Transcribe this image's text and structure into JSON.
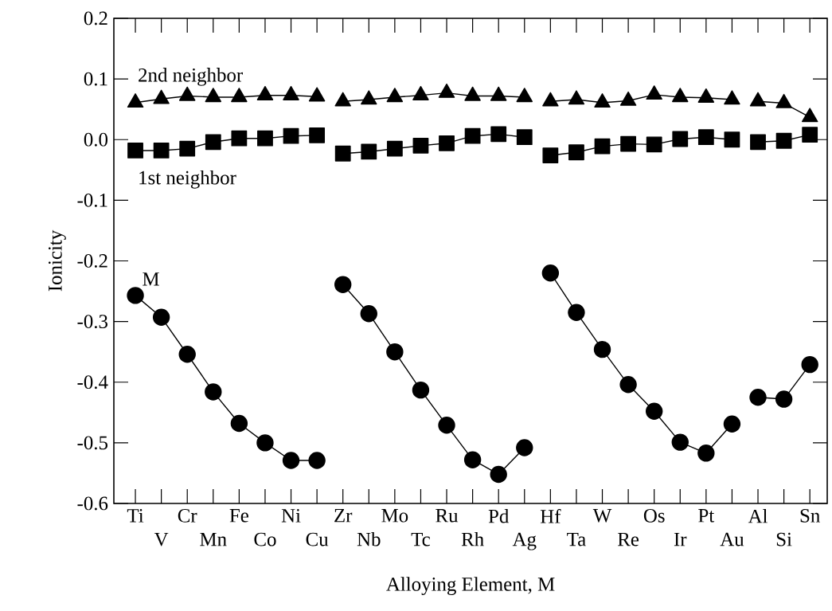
{
  "chart_data": {
    "type": "line",
    "xlabel": "Alloying Element, M",
    "ylabel": "Ionicity",
    "categories": [
      "Ti",
      "V",
      "Cr",
      "Mn",
      "Fe",
      "Co",
      "Ni",
      "Cu",
      "Zr",
      "Nb",
      "Mo",
      "Tc",
      "Ru",
      "Rh",
      "Pd",
      "Ag",
      "Hf",
      "Ta",
      "W",
      "Re",
      "Os",
      "Ir",
      "Pt",
      "Au",
      "Al",
      "Si",
      "Sn"
    ],
    "ylim": [
      -0.6,
      0.2
    ],
    "yticks": [
      {
        "value": -0.6,
        "label": "-0.6"
      },
      {
        "value": -0.5,
        "label": "-0.5"
      },
      {
        "value": -0.4,
        "label": "-0.4"
      },
      {
        "value": -0.3,
        "label": "-0.3"
      },
      {
        "value": -0.2,
        "label": "-0.2"
      },
      -0.1,
      {
        "value": 0,
        "label": "0.0"
      },
      0.1,
      0.2
    ],
    "series": [
      {
        "name": "2nd neighbor",
        "color": "#000000",
        "marker": "triangle",
        "values": [
          0.061,
          0.067,
          0.072,
          0.07,
          0.07,
          0.073,
          0.073,
          0.071,
          null,
          null,
          null,
          null,
          null,
          null,
          null,
          null,
          null,
          null,
          null,
          null,
          null,
          null,
          null,
          null,
          null,
          null,
          null
        ]
      },
      {
        "color": "#000000",
        "marker": "triangle",
        "values": [
          null,
          null,
          null,
          null,
          null,
          null,
          null,
          null,
          0.063,
          0.066,
          0.07,
          0.073,
          0.077,
          0.072,
          0.072,
          0.07,
          null,
          null,
          null,
          null,
          null,
          null,
          null,
          null,
          null,
          null,
          null
        ]
      },
      {
        "color": "#000000",
        "marker": "triangle",
        "values": [
          null,
          null,
          null,
          null,
          null,
          null,
          null,
          null,
          null,
          null,
          null,
          null,
          null,
          null,
          null,
          null,
          0.063,
          0.066,
          0.061,
          0.064,
          0.074,
          0.07,
          0.069,
          0.066,
          null,
          null,
          null
        ]
      },
      {
        "color": "#000000",
        "marker": "triangle",
        "values": [
          null,
          null,
          null,
          null,
          null,
          null,
          null,
          null,
          null,
          null,
          null,
          null,
          null,
          null,
          null,
          null,
          null,
          null,
          null,
          null,
          null,
          null,
          null,
          null,
          0.063,
          0.06,
          0.037
        ]
      },
      {
        "name": "1st neighbor",
        "color": "#000000",
        "marker": "square",
        "values": [
          -0.018,
          -0.018,
          -0.015,
          -0.004,
          0.002,
          0.002,
          0.006,
          0.007,
          null,
          null,
          null,
          null,
          null,
          null,
          null,
          null,
          null,
          null,
          null,
          null,
          null,
          null,
          null,
          null,
          null,
          null,
          null
        ]
      },
      {
        "color": "#000000",
        "marker": "square",
        "values": [
          null,
          null,
          null,
          null,
          null,
          null,
          null,
          null,
          -0.023,
          -0.02,
          -0.015,
          -0.01,
          -0.006,
          0.006,
          0.009,
          0.004,
          null,
          null,
          null,
          null,
          null,
          null,
          null,
          null,
          null,
          null,
          null
        ]
      },
      {
        "color": "#000000",
        "marker": "square",
        "values": [
          null,
          null,
          null,
          null,
          null,
          null,
          null,
          null,
          null,
          null,
          null,
          null,
          null,
          null,
          null,
          null,
          -0.026,
          -0.021,
          -0.011,
          -0.007,
          -0.008,
          0.001,
          0.004,
          0.0,
          null,
          null,
          null
        ]
      },
      {
        "color": "#000000",
        "marker": "square",
        "values": [
          null,
          null,
          null,
          null,
          null,
          null,
          null,
          null,
          null,
          null,
          null,
          null,
          null,
          null,
          null,
          null,
          null,
          null,
          null,
          null,
          null,
          null,
          null,
          null,
          -0.004,
          -0.002,
          0.008
        ]
      },
      {
        "name": "M",
        "color": "#000000",
        "marker": "circle",
        "values": [
          -0.257,
          -0.293,
          -0.354,
          -0.416,
          -0.468,
          -0.5,
          -0.529,
          -0.529,
          null,
          null,
          null,
          null,
          null,
          null,
          null,
          null,
          null,
          null,
          null,
          null,
          null,
          null,
          null,
          null,
          null,
          null,
          null
        ]
      },
      {
        "color": "#000000",
        "marker": "circle",
        "values": [
          null,
          null,
          null,
          null,
          null,
          null,
          null,
          null,
          -0.239,
          -0.287,
          -0.35,
          -0.413,
          -0.471,
          -0.528,
          -0.552,
          -0.508,
          null,
          null,
          null,
          null,
          null,
          null,
          null,
          null,
          null,
          null,
          null
        ]
      },
      {
        "color": "#000000",
        "marker": "circle",
        "values": [
          null,
          null,
          null,
          null,
          null,
          null,
          null,
          null,
          null,
          null,
          null,
          null,
          null,
          null,
          null,
          null,
          -0.22,
          -0.285,
          -0.346,
          -0.404,
          -0.448,
          -0.499,
          -0.517,
          -0.469,
          null,
          null,
          null
        ]
      },
      {
        "color": "#000000",
        "marker": "circle",
        "values": [
          null,
          null,
          null,
          null,
          null,
          null,
          null,
          null,
          null,
          null,
          null,
          null,
          null,
          null,
          null,
          null,
          null,
          null,
          null,
          null,
          null,
          null,
          null,
          null,
          -0.425,
          -0.428,
          -0.371
        ]
      }
    ]
  }
}
